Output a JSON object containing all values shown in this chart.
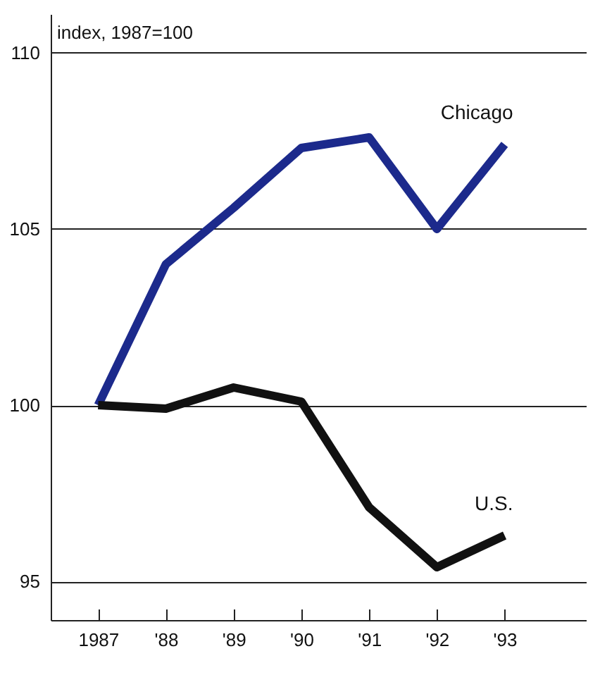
{
  "chart_data": {
    "type": "line",
    "ylabel": "index, 1987=100",
    "x": [
      1987,
      1988,
      1989,
      1990,
      1991,
      1992,
      1993
    ],
    "series": [
      {
        "name": "Chicago",
        "color": "#1c2a8c",
        "values": [
          100,
          104.0,
          105.6,
          107.3,
          107.6,
          105.0,
          107.4
        ]
      },
      {
        "name": "U.S.",
        "color": "#111111",
        "values": [
          100,
          99.9,
          100.5,
          100.1,
          97.1,
          95.4,
          96.3
        ]
      }
    ],
    "xlim": [
      1986.3,
      1994.2
    ],
    "ylim": [
      93.9,
      111.1
    ],
    "xticks": [
      {
        "value": 1987,
        "label": "1987"
      },
      {
        "value": 1988,
        "label": "'88"
      },
      {
        "value": 1989,
        "label": "'89"
      },
      {
        "value": 1990,
        "label": "'90"
      },
      {
        "value": 1991,
        "label": "'91"
      },
      {
        "value": 1992,
        "label": "'92"
      },
      {
        "value": 1993,
        "label": "'93"
      }
    ],
    "yticks": [
      95,
      100,
      105,
      110
    ],
    "grid": "y",
    "marker": "none",
    "line_style": "solid",
    "legend": false
  }
}
